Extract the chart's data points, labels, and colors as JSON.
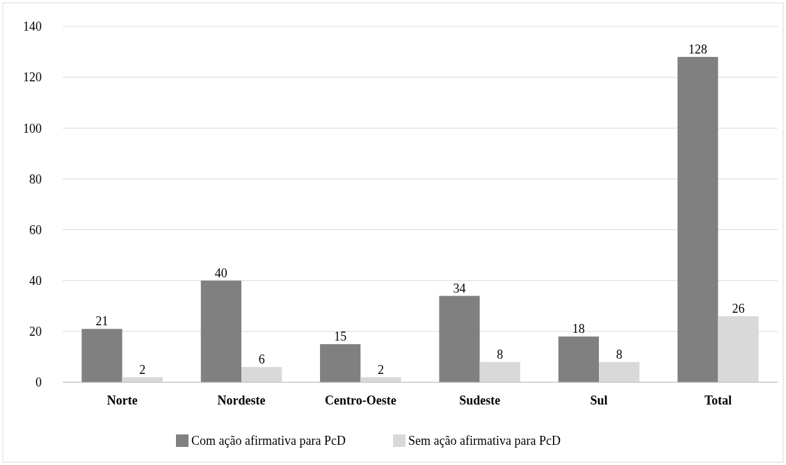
{
  "chart_data": {
    "type": "bar",
    "categories": [
      "Norte",
      "Nordeste",
      "Centro-Oeste",
      "Sudeste",
      "Sul",
      "Total"
    ],
    "series": [
      {
        "name": "Com ação afirmativa para PcD",
        "color": "#808080",
        "values": [
          21,
          40,
          15,
          34,
          18,
          128
        ]
      },
      {
        "name": "Sem ação afirmativa para PcD",
        "color": "#d9d9d9",
        "values": [
          2,
          6,
          2,
          8,
          8,
          26
        ]
      }
    ],
    "ylim": [
      0,
      140
    ],
    "yticks": [
      0,
      20,
      40,
      60,
      80,
      100,
      120,
      140
    ],
    "grid": "y",
    "legend": "bottom",
    "data_labels": true
  }
}
